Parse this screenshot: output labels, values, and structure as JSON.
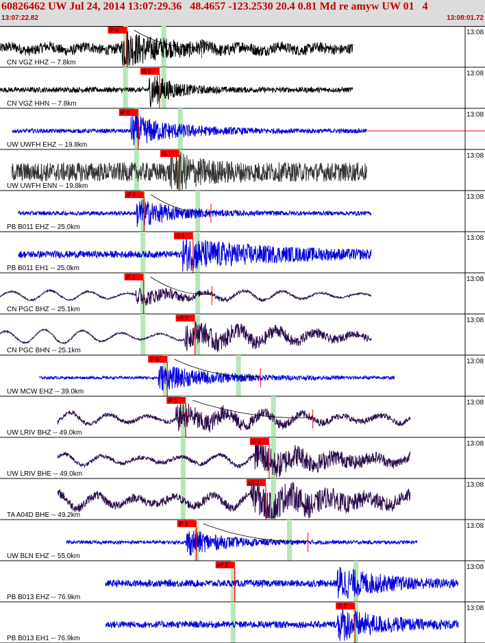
{
  "header": {
    "title": "60826462 UW Jul 24, 2014 13:07:29.36   48.4657 -123.2530 20.4 0.81 Md re amyw UW 01   4",
    "start_time": "13:07:22.82",
    "end_time": "13:08:01.72"
  },
  "colors": {
    "header_bg": "#dcdcdc",
    "header_text": "#c00000",
    "pick_flag": "#ff0000",
    "pick_bar": "#b8e6b8",
    "theory_curve": "#000000",
    "trace_black": "#000000",
    "trace_blue": "#0000dd",
    "trace_dark": "#333333",
    "trace_purple": "#2a0a4a"
  },
  "chart_data": {
    "type": "seismogram",
    "title": "",
    "time_range": [
      "13:07:22.82",
      "13:08:01.72"
    ],
    "tick_label": "13:08",
    "traces": [
      {
        "label": "CN VGZ HHZ -- 7.8km",
        "color": "black",
        "pick": "iP 0",
        "pick_t": 0.262,
        "green": [
          0.258,
          0.337
        ],
        "signal": [
          0.0,
          0.77
        ],
        "amp": 1.0,
        "noise": 0.3,
        "wave": 0.13,
        "onset": 0.265,
        "decay": 0.08,
        "cross": 0.416
      },
      {
        "label": "CN VGZ HHN -- 7.8km",
        "color": "black",
        "pick": "iS 0",
        "pick_t": 0.329,
        "green": [
          0.258,
          0.337
        ],
        "signal": [
          0.0,
          0.77
        ],
        "amp": 1.0,
        "noise": 0.15,
        "wave": 0.0,
        "onset": 0.325,
        "decay": 0.05
      },
      {
        "label": "UW UWFH EHZ -- 19.8km",
        "color": "blue",
        "pick": "iP 0",
        "pick_t": 0.285,
        "green": [
          0.281,
          0.371
        ],
        "signal": [
          0.026,
          0.8
        ],
        "amp": 0.9,
        "noise": 0.12,
        "wave": 0.0,
        "onset": 0.285,
        "decay": 0.1,
        "reddash": true
      },
      {
        "label": "UW UWFH ENN -- 19.8km",
        "color": "dark",
        "pick": "iS 1",
        "pick_t": 0.37,
        "green": [
          0.281,
          0.371
        ],
        "signal": [
          0.026,
          0.8
        ],
        "amp": 0.9,
        "noise": 0.55,
        "wave": 0.0,
        "onset": 0.37,
        "decay": 0.06
      },
      {
        "label": "PB B011 EHZ -- 25.0km",
        "color": "blue",
        "pick": "iP 0",
        "pick_t": 0.297,
        "green": [
          0.294,
          0.407
        ],
        "signal": [
          0.04,
          0.81
        ],
        "amp": 0.85,
        "noise": 0.12,
        "wave": 0.0,
        "onset": 0.297,
        "decay": 0.08,
        "cross": 0.435
      },
      {
        "label": "PB B011 EH1 -- 25.0km",
        "color": "blue",
        "pick": "iS 1",
        "pick_t": 0.398,
        "green": [
          0.294,
          0.407
        ],
        "signal": [
          0.04,
          0.81
        ],
        "amp": 0.85,
        "noise": 0.2,
        "wave": 0.0,
        "onset": 0.398,
        "decay": 0.2
      },
      {
        "label": "CN PGC BHZ -- 25.1km",
        "color": "purple",
        "pick": "iP 1",
        "pick_t": 0.296,
        "green": [
          0.294,
          0.407
        ],
        "signal": [
          0.0,
          0.81
        ],
        "amp": 0.55,
        "noise": 0.05,
        "wave": 0.28,
        "onset": 0.296,
        "decay": 0.1,
        "cross": 0.437
      },
      {
        "label": "CN PGC BHN -- 25.1km",
        "color": "purple",
        "pick": "eS 2",
        "pick_t": 0.402,
        "green": [
          0.294,
          0.407
        ],
        "signal": [
          0.0,
          0.81
        ],
        "amp": 0.7,
        "noise": 0.05,
        "wave": 0.4,
        "onset": 0.402,
        "decay": 0.25
      },
      {
        "label": "UW MCW EHZ -- 39.0km",
        "color": "blue",
        "pick": "iP 0",
        "pick_t": 0.345,
        "green": [
          0.34,
          0.491
        ],
        "signal": [
          0.085,
          0.86
        ],
        "amp": 0.75,
        "noise": 0.08,
        "wave": 0.0,
        "onset": 0.345,
        "decay": 0.12,
        "cross": 0.537
      },
      {
        "label": "UW LRIV BHZ -- 49.0km",
        "color": "purple",
        "pick": "iP 1",
        "pick_t": 0.383,
        "green": [
          0.377,
          0.563
        ],
        "signal": [
          0.125,
          0.895
        ],
        "amp": 0.7,
        "noise": 0.12,
        "wave": 0.4,
        "onset": 0.383,
        "decay": 0.15,
        "cross": 0.645
      },
      {
        "label": "UW LRIV BHE -- 49.0km",
        "color": "purple",
        "pick": "iS 1",
        "pick_t": 0.555,
        "green": [
          0.377,
          0.563
        ],
        "signal": [
          0.125,
          0.895
        ],
        "amp": 0.85,
        "noise": 0.12,
        "wave": 0.35,
        "onset": 0.555,
        "decay": 0.2
      },
      {
        "label": "TA A04D BHE -- 49.2km",
        "color": "purple",
        "pick": "eS 2",
        "pick_t": 0.548,
        "green": [
          0.377,
          0.563
        ],
        "signal": [
          0.125,
          0.895
        ],
        "amp": 0.85,
        "noise": 0.25,
        "wave": 0.45,
        "onset": 0.548,
        "decay": 0.2
      },
      {
        "label": "UW BLN EHZ -- 55.0km",
        "color": "blue",
        "pick": "iP 1",
        "pick_t": 0.405,
        "green": [
          0.405,
          0.596
        ],
        "signal": [
          0.145,
          0.91
        ],
        "amp": 0.8,
        "noise": 0.1,
        "wave": 0.0,
        "onset": 0.405,
        "decay": 0.08,
        "cross": 0.635
      },
      {
        "label": "PB B013 EHZ -- 76.9km",
        "color": "blue",
        "pick": "eP 2",
        "pick_t": 0.484,
        "green": [
          0.48,
          0.733
        ],
        "signal": [
          0.23,
          1.0
        ],
        "amp": 0.9,
        "noise": 0.2,
        "wave": 0.0,
        "onset": 0.735,
        "decay": 0.1
      },
      {
        "label": "PB B013 EH1 -- 76.9km",
        "color": "blue",
        "pick": "iS 1",
        "pick_t": 0.732,
        "green": [
          0.48,
          0.733
        ],
        "signal": [
          0.23,
          1.0
        ],
        "amp": 0.9,
        "noise": 0.2,
        "wave": 0.0,
        "onset": 0.735,
        "decay": 0.1
      }
    ]
  }
}
